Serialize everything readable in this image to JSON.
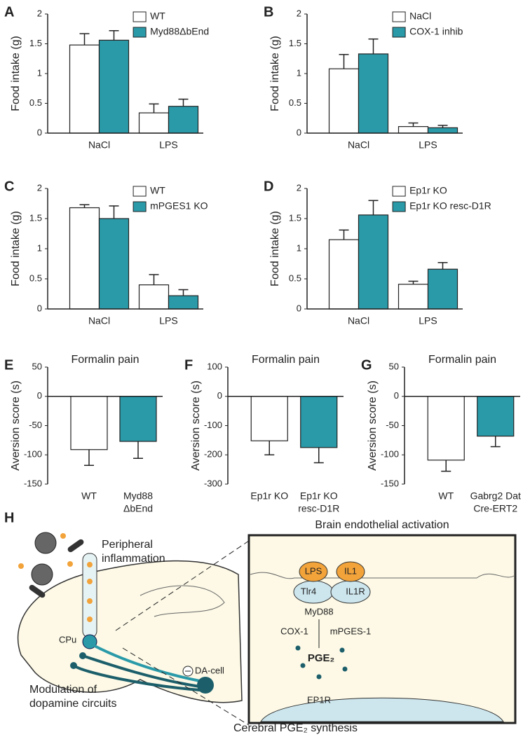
{
  "chart_data": [
    {
      "type": "bar",
      "label": "A",
      "ylabel": "Food intake (g)",
      "categories": [
        "NaCl",
        "LPS"
      ],
      "ylim": [
        0,
        2
      ],
      "yticks": [
        0,
        0.5,
        1,
        1.5,
        2
      ],
      "legend": "upper right",
      "series": [
        {
          "name": "WT",
          "color": "#ffffff",
          "values": [
            1.48,
            0.34
          ],
          "errors": [
            0.19,
            0.15
          ]
        },
        {
          "name": "Myd88ΔbEnd",
          "color": "#2a9aa9",
          "values": [
            1.56,
            0.45
          ],
          "errors": [
            0.16,
            0.12
          ]
        }
      ]
    },
    {
      "type": "bar",
      "label": "B",
      "ylabel": "Food intake (g)",
      "categories": [
        "NaCl",
        "LPS"
      ],
      "ylim": [
        0,
        2
      ],
      "yticks": [
        0,
        0.5,
        1,
        1.5,
        2
      ],
      "legend": "upper right",
      "series": [
        {
          "name": "NaCl",
          "color": "#ffffff",
          "values": [
            1.08,
            0.11
          ],
          "errors": [
            0.24,
            0.06
          ]
        },
        {
          "name": "COX-1 inhib",
          "color": "#2a9aa9",
          "values": [
            1.33,
            0.09
          ],
          "errors": [
            0.25,
            0.04
          ]
        }
      ]
    },
    {
      "type": "bar",
      "label": "C",
      "ylabel": "Food intake (g)",
      "categories": [
        "NaCl",
        "LPS"
      ],
      "ylim": [
        0,
        2
      ],
      "yticks": [
        0,
        0.5,
        1,
        1.5,
        2
      ],
      "legend": "upper right",
      "series": [
        {
          "name": "WT",
          "color": "#ffffff",
          "values": [
            1.68,
            0.4
          ],
          "errors": [
            0.05,
            0.17
          ]
        },
        {
          "name": "mPGES1 KO",
          "color": "#2a9aa9",
          "values": [
            1.5,
            0.22
          ],
          "errors": [
            0.21,
            0.1
          ]
        }
      ]
    },
    {
      "type": "bar",
      "label": "D",
      "ylabel": "Food intake (g)",
      "categories": [
        "NaCl",
        "LPS"
      ],
      "ylim": [
        0,
        2
      ],
      "yticks": [
        0,
        0.5,
        1,
        1.5,
        2
      ],
      "legend": "upper right",
      "series": [
        {
          "name": "Ep1r KO",
          "color": "#ffffff",
          "values": [
            1.15,
            0.41
          ],
          "errors": [
            0.16,
            0.05
          ]
        },
        {
          "name": "Ep1r KO resc-D1R",
          "color": "#2a9aa9",
          "values": [
            1.56,
            0.66
          ],
          "errors": [
            0.24,
            0.11
          ]
        }
      ]
    },
    {
      "type": "bar",
      "label": "E",
      "title": "Formalin pain",
      "ylabel": "Aversion score (s)",
      "categories": [
        [
          "WT"
        ],
        [
          "Myd88",
          "ΔbEnd"
        ]
      ],
      "ylim": [
        -150,
        50
      ],
      "yticks": [
        -150,
        -100,
        -50,
        0,
        50
      ],
      "series": [
        {
          "colors": [
            "#ffffff",
            "#2a9aa9"
          ],
          "values": [
            -91,
            -77
          ],
          "errors": [
            27,
            29
          ]
        }
      ]
    },
    {
      "type": "bar",
      "label": "F",
      "title": "Formalin pain",
      "ylabel": "Aversion score (s)",
      "categories": [
        [
          "Ep1r KO"
        ],
        [
          "Ep1r KO",
          "resc-D1R"
        ]
      ],
      "ylim": [
        -300,
        100
      ],
      "yticks": [
        -300,
        -200,
        -100,
        0,
        100
      ],
      "series": [
        {
          "colors": [
            "#ffffff",
            "#2a9aa9"
          ],
          "values": [
            -152,
            -175
          ],
          "errors": [
            48,
            52
          ]
        }
      ]
    },
    {
      "type": "bar",
      "label": "G",
      "title": "Formalin pain",
      "ylabel": "Aversion score (s)",
      "categories": [
        [
          "WT"
        ],
        [
          "Gabrg2 Dat",
          "Cre-ERT2"
        ]
      ],
      "ylim": [
        -150,
        50
      ],
      "yticks": [
        -150,
        -100,
        -50,
        0,
        50
      ],
      "series": [
        {
          "colors": [
            "#ffffff",
            "#2a9aa9"
          ],
          "values": [
            -109,
            -68
          ],
          "errors": [
            19,
            18
          ]
        }
      ]
    }
  ],
  "diagram": {
    "label": "H",
    "peripheral": [
      "Peripheral",
      "inflammation"
    ],
    "cpu": "CPu",
    "da_cell": "DA-cell",
    "modulation": [
      "Modulation of",
      "dopamine circuits"
    ],
    "synthesis": "Cerebral PGE₂ synthesis",
    "inset_title": "Brain endothelial activation",
    "lps": "LPS",
    "il1": "IL1",
    "tlr4": "Tlr4",
    "il1r": "IL1R",
    "myd88": "MyD88",
    "cox1": "COX-1",
    "mpges1": "mPGES-1",
    "pge2": "PGE₂",
    "ep1r": "EP1R"
  }
}
